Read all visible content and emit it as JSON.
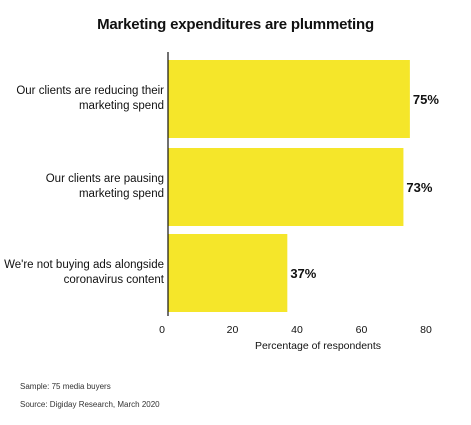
{
  "chart_data": {
    "type": "bar",
    "orientation": "horizontal",
    "title": "Marketing expenditures are plummeting",
    "categories": [
      "Our clients are reducing their marketing spend",
      "Our clients are pausing marketing spend",
      "We're not buying ads alongside coronavirus content"
    ],
    "category_lines": [
      [
        "Our clients are reducing their",
        "marketing spend"
      ],
      [
        "Our clients are pausing",
        "marketing spend"
      ],
      [
        "We're not buying ads alongside",
        "coronavirus content"
      ]
    ],
    "values": [
      75,
      73,
      37
    ],
    "value_labels": [
      "75%",
      "73%",
      "37%"
    ],
    "xlabel": "Percentage of respondents",
    "ylabel": "",
    "xlim": [
      0,
      80
    ],
    "xticks": [
      "0",
      "20",
      "40",
      "60",
      "80"
    ],
    "grid": false,
    "bar_color": "#F5E62A"
  },
  "footnotes": {
    "sample": "Sample: 75 media buyers",
    "source": "Source: Digiday Research, March 2020"
  }
}
